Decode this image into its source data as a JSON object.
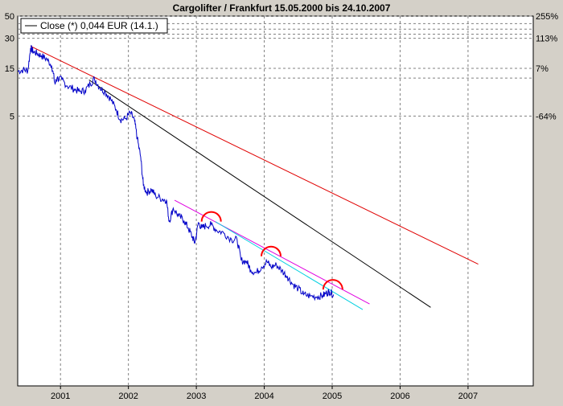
{
  "chart_data": {
    "type": "line",
    "title": "Cargolifter / Frankfurt 15.05.2000 bis 24.10.2007",
    "legend": {
      "placement": "top-left",
      "label": "Close (*) 0,044 EUR (14.1.)"
    },
    "x_ticks": [
      "2001",
      "2002",
      "2003",
      "2004",
      "2005",
      "2006",
      "2007"
    ],
    "x_range": [
      2000.37,
      2007.96
    ],
    "y_scale": "log",
    "y_range": [
      0.01,
      50
    ],
    "left_ticks": [
      {
        "label": "50",
        "value": 50
      },
      {
        "label": "30",
        "value": 30
      },
      {
        "label": "15",
        "value": 15
      },
      {
        "label": "5",
        "value": 5
      }
    ],
    "right_ticks": [
      {
        "label": "255%",
        "value": 50
      },
      {
        "label": "113%",
        "value": 30
      },
      {
        "label": "7%",
        "value": 15
      },
      {
        "label": "-64%",
        "value": 5
      }
    ],
    "extra_gridlines": [
      42,
      37,
      33,
      12
    ],
    "grid": true,
    "colors": {
      "price": "#0000c8",
      "trend_red": "#e00000",
      "trend_black": "#000000",
      "trend_magenta": "#e000e0",
      "trend_cyan": "#00d0e0",
      "arc": "#ff0000",
      "plot_bg": "#ffffff",
      "frame_bg": "#d4d0c8"
    },
    "series": [
      {
        "values": [
          [
            2000.37,
            14.0
          ],
          [
            2000.45,
            14.5
          ],
          [
            2000.52,
            14.3
          ],
          [
            2000.56,
            24.0
          ],
          [
            2000.6,
            22.0
          ],
          [
            2000.66,
            21.0
          ],
          [
            2000.72,
            20.0
          ],
          [
            2000.8,
            18.5
          ],
          [
            2000.87,
            16.0
          ],
          [
            2000.92,
            10.5
          ],
          [
            2000.95,
            12.0
          ],
          [
            2001.02,
            11.5
          ],
          [
            2001.1,
            10.0
          ],
          [
            2001.2,
            9.3
          ],
          [
            2001.28,
            8.8
          ],
          [
            2001.36,
            9.0
          ],
          [
            2001.44,
            10.5
          ],
          [
            2001.5,
            11.8
          ],
          [
            2001.58,
            9.6
          ],
          [
            2001.66,
            8.7
          ],
          [
            2001.74,
            7.4
          ],
          [
            2001.82,
            5.8
          ],
          [
            2001.88,
            4.6
          ],
          [
            2001.96,
            4.7
          ],
          [
            2002.03,
            5.4
          ],
          [
            2002.09,
            4.5
          ],
          [
            2002.13,
            3.0
          ],
          [
            2002.18,
            1.95
          ],
          [
            2002.22,
            1.02
          ],
          [
            2002.27,
            0.86
          ],
          [
            2002.34,
            0.92
          ],
          [
            2002.4,
            0.8
          ],
          [
            2002.5,
            0.74
          ],
          [
            2002.56,
            0.72
          ],
          [
            2002.6,
            0.44
          ],
          [
            2002.66,
            0.6
          ],
          [
            2002.74,
            0.5
          ],
          [
            2002.82,
            0.45
          ],
          [
            2002.88,
            0.38
          ],
          [
            2002.94,
            0.31
          ],
          [
            2002.98,
            0.27
          ],
          [
            2003.03,
            0.43
          ],
          [
            2003.08,
            0.38
          ],
          [
            2003.14,
            0.4
          ],
          [
            2003.22,
            0.41
          ],
          [
            2003.3,
            0.36
          ],
          [
            2003.4,
            0.34
          ],
          [
            2003.52,
            0.29
          ],
          [
            2003.6,
            0.29
          ],
          [
            2003.66,
            0.18
          ],
          [
            2003.74,
            0.175
          ],
          [
            2003.8,
            0.145
          ],
          [
            2003.88,
            0.135
          ],
          [
            2003.96,
            0.155
          ],
          [
            2004.04,
            0.175
          ],
          [
            2004.1,
            0.155
          ],
          [
            2004.18,
            0.162
          ],
          [
            2004.26,
            0.142
          ],
          [
            2004.34,
            0.124
          ],
          [
            2004.42,
            0.104
          ],
          [
            2004.5,
            0.094
          ],
          [
            2004.58,
            0.082
          ],
          [
            2004.68,
            0.079
          ],
          [
            2004.78,
            0.078
          ],
          [
            2004.86,
            0.08
          ],
          [
            2004.92,
            0.085
          ],
          [
            2004.96,
            0.088
          ],
          [
            2005.02,
            0.082
          ]
        ]
      }
    ],
    "trend_lines": [
      {
        "color": "trend_red",
        "from": [
          2000.56,
          25.0
        ],
        "to": [
          2007.15,
          0.165
        ]
      },
      {
        "color": "trend_black",
        "from": [
          2001.42,
          11.5
        ],
        "to": [
          2006.45,
          0.061
        ]
      },
      {
        "color": "trend_magenta",
        "from": [
          2002.68,
          0.72
        ],
        "to": [
          2005.55,
          0.066
        ]
      },
      {
        "color": "trend_cyan",
        "from": [
          2003.28,
          0.44
        ],
        "to": [
          2005.45,
          0.058
        ]
      }
    ],
    "arcs": [
      {
        "center": [
          2003.22,
          0.44
        ]
      },
      {
        "center": [
          2004.1,
          0.198
        ]
      },
      {
        "center": [
          2005.01,
          0.092
        ]
      }
    ]
  }
}
